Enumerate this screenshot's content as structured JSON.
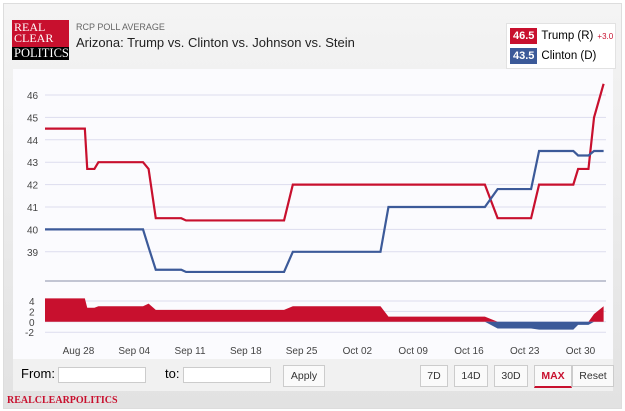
{
  "header": {
    "subtitle": "RCP POLL AVERAGE",
    "title": "Arizona: Trump vs. Clinton vs. Johnson vs. Stein",
    "logo_text": "REAL CLEAR POLITICS"
  },
  "legend": [
    {
      "value": "46.5",
      "name": "Trump (R)",
      "change": "+3.0",
      "color": "#c8102e"
    },
    {
      "value": "43.5",
      "name": "Clinton (D)",
      "color": "#3c5a99"
    }
  ],
  "controls": {
    "from_label": "From:",
    "to_label": "to:",
    "from_value": "",
    "to_value": "",
    "apply": "Apply",
    "ranges": [
      "7D",
      "14D",
      "30D",
      "MAX"
    ],
    "active": "MAX",
    "reset": "Reset"
  },
  "footer": "REALCLEARPOLITICS",
  "chart_data": {
    "type": "line",
    "x_unit": "days since Aug 28",
    "x_ticks": [
      {
        "day": 0,
        "label": "Aug 28"
      },
      {
        "day": 7,
        "label": "Sep 04"
      },
      {
        "day": 14,
        "label": "Sep 11"
      },
      {
        "day": 21,
        "label": "Sep 18"
      },
      {
        "day": 28,
        "label": "Sep 25"
      },
      {
        "day": 35,
        "label": "Oct 02"
      },
      {
        "day": 42,
        "label": "Oct 09"
      },
      {
        "day": 49,
        "label": "Oct 16"
      },
      {
        "day": 56,
        "label": "Oct 23"
      },
      {
        "day": 63,
        "label": "Oct 30"
      }
    ],
    "xlim": [
      -4.2,
      66.2
    ],
    "ylim": [
      37.5,
      47
    ],
    "y_ticks": [
      39,
      40,
      41,
      42,
      43,
      44,
      45,
      46
    ],
    "spread_ylim": [
      -3,
      5
    ],
    "spread_ticks": [
      -2,
      0,
      2,
      4
    ],
    "days": [
      -4.2,
      0.8,
      1.1,
      2.0,
      2.5,
      8.1,
      8.8,
      9.7,
      12.9,
      13.5,
      25.8,
      26.9,
      37.9,
      38.9,
      51.0,
      52.6,
      56.8,
      57.8,
      62.1,
      62.7,
      64.0,
      64.7,
      65.9
    ],
    "series": [
      {
        "name": "Trump (R)",
        "color": "#c8102e",
        "values": [
          44.5,
          44.5,
          42.7,
          42.7,
          43,
          43,
          42.7,
          40.5,
          40.5,
          40.4,
          40.4,
          42,
          42,
          42,
          42,
          40.5,
          40.5,
          42,
          42,
          42.7,
          42.7,
          45,
          46.5
        ]
      },
      {
        "name": "Clinton (D)",
        "color": "#3c5a99",
        "values": [
          40,
          40,
          40,
          40,
          40,
          40,
          39.2,
          38.2,
          38.2,
          38.1,
          38.1,
          39,
          39,
          41,
          41,
          41.8,
          41.8,
          43.5,
          43.5,
          43.3,
          43.3,
          43.5,
          43.5
        ]
      }
    ]
  }
}
